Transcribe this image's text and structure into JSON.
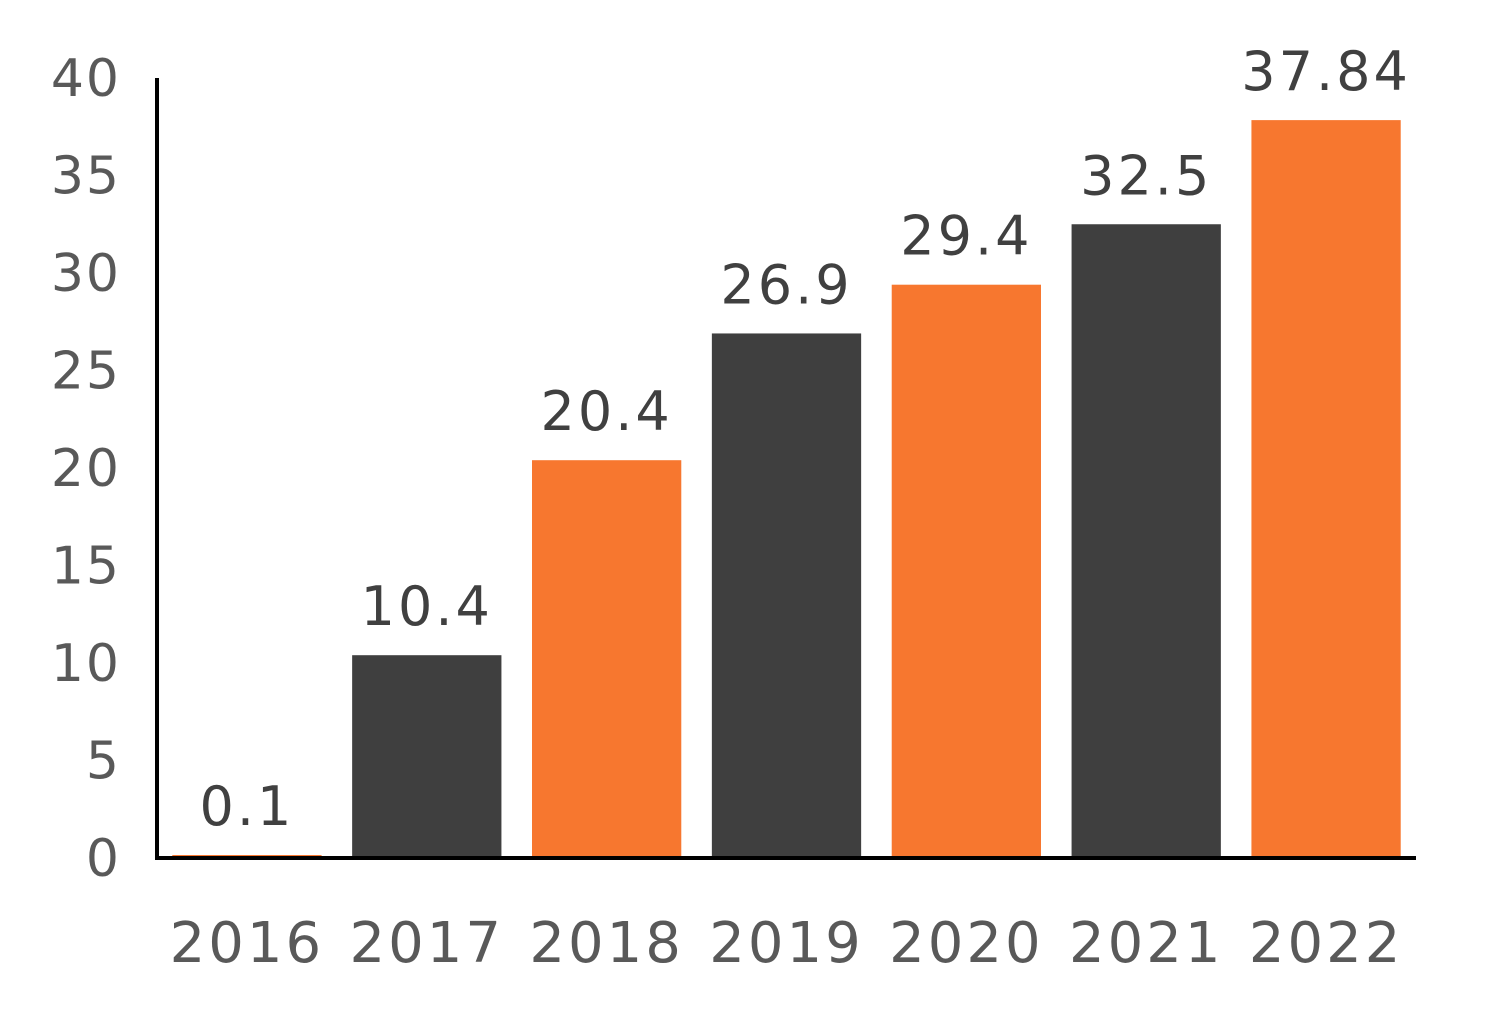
{
  "chart_data": {
    "type": "bar",
    "title": "",
    "xlabel": "",
    "ylabel": "",
    "categories": [
      "2016",
      "2017",
      "2018",
      "2019",
      "2020",
      "2021",
      "2022"
    ],
    "values": [
      0.1,
      10.4,
      20.4,
      26.9,
      29.4,
      32.5,
      37.84
    ],
    "data_labels": [
      "0.1",
      "10.4",
      "20.4",
      "26.9",
      "29.4",
      "32.5",
      "37.84"
    ],
    "bar_colors": [
      "#F7772F",
      "#3F3F3F",
      "#F7772F",
      "#3F3F3F",
      "#F7772F",
      "#3F3F3F",
      "#F7772F"
    ],
    "ylim": [
      0,
      40
    ],
    "yticks": [
      0,
      5,
      10,
      15,
      20,
      25,
      30,
      35,
      40
    ],
    "ytick_labels": [
      "0",
      "5",
      "10",
      "15",
      "20",
      "25",
      "30",
      "35",
      "40"
    ],
    "grid": false,
    "legend": "none",
    "axis_color": "#000000"
  }
}
